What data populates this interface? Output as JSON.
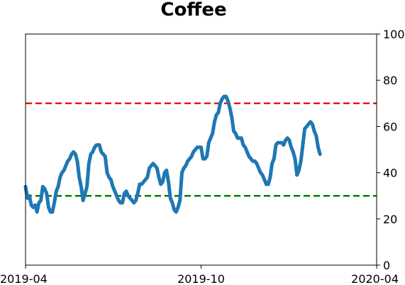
{
  "chart_data": {
    "type": "line",
    "title": "Coffee",
    "xlabel": "",
    "ylabel": "",
    "x_range": [
      "2019-04-01",
      "2020-04-01"
    ],
    "y_range": [
      0,
      100
    ],
    "y_axis_side": "right",
    "grid": false,
    "x_ticks": [
      {
        "date": "2019-04-01",
        "label": "2019-04"
      },
      {
        "date": "2019-10-01",
        "label": "2019-10"
      },
      {
        "date": "2020-04-01",
        "label": "2020-04"
      }
    ],
    "y_ticks": [
      0,
      20,
      40,
      60,
      80,
      100
    ],
    "reference_lines": [
      {
        "y": 70,
        "color": "#e41a1c",
        "style": "dashed"
      },
      {
        "y": 30,
        "color": "#008000",
        "style": "dashed"
      }
    ],
    "series": [
      {
        "color": "#1f77b4",
        "points": [
          [
            "2019-04-01",
            34
          ],
          [
            "2019-04-03",
            29
          ],
          [
            "2019-04-05",
            30
          ],
          [
            "2019-04-07",
            26
          ],
          [
            "2019-04-09",
            25
          ],
          [
            "2019-04-11",
            26
          ],
          [
            "2019-04-13",
            23
          ],
          [
            "2019-04-15",
            27
          ],
          [
            "2019-04-17",
            28
          ],
          [
            "2019-04-19",
            34
          ],
          [
            "2019-04-21",
            33
          ],
          [
            "2019-04-23",
            31
          ],
          [
            "2019-04-25",
            25
          ],
          [
            "2019-04-27",
            23
          ],
          [
            "2019-04-29",
            23
          ],
          [
            "2019-05-01",
            27
          ],
          [
            "2019-05-03",
            32
          ],
          [
            "2019-05-05",
            34
          ],
          [
            "2019-05-07",
            38
          ],
          [
            "2019-05-09",
            40
          ],
          [
            "2019-05-11",
            41
          ],
          [
            "2019-05-13",
            43
          ],
          [
            "2019-05-15",
            45
          ],
          [
            "2019-05-17",
            46
          ],
          [
            "2019-05-19",
            48
          ],
          [
            "2019-05-21",
            49
          ],
          [
            "2019-05-23",
            48
          ],
          [
            "2019-05-25",
            45
          ],
          [
            "2019-05-27",
            38
          ],
          [
            "2019-05-29",
            34
          ],
          [
            "2019-05-31",
            28
          ],
          [
            "2019-06-02",
            31
          ],
          [
            "2019-06-04",
            34
          ],
          [
            "2019-06-06",
            44
          ],
          [
            "2019-06-08",
            48
          ],
          [
            "2019-06-10",
            49
          ],
          [
            "2019-06-12",
            51
          ],
          [
            "2019-06-14",
            52
          ],
          [
            "2019-06-17",
            52
          ],
          [
            "2019-06-19",
            49
          ],
          [
            "2019-06-21",
            48
          ],
          [
            "2019-06-23",
            47
          ],
          [
            "2019-06-25",
            40
          ],
          [
            "2019-06-27",
            38
          ],
          [
            "2019-06-29",
            37
          ],
          [
            "2019-07-01",
            34
          ],
          [
            "2019-07-03",
            32
          ],
          [
            "2019-07-05",
            30
          ],
          [
            "2019-07-07",
            28
          ],
          [
            "2019-07-09",
            27
          ],
          [
            "2019-07-11",
            27
          ],
          [
            "2019-07-13",
            31
          ],
          [
            "2019-07-15",
            32
          ],
          [
            "2019-07-17",
            30
          ],
          [
            "2019-07-19",
            29
          ],
          [
            "2019-07-21",
            28
          ],
          [
            "2019-07-23",
            27
          ],
          [
            "2019-07-25",
            28
          ],
          [
            "2019-07-27",
            31
          ],
          [
            "2019-07-29",
            35
          ],
          [
            "2019-07-31",
            35
          ],
          [
            "2019-08-02",
            36
          ],
          [
            "2019-08-04",
            37
          ],
          [
            "2019-08-06",
            38
          ],
          [
            "2019-08-08",
            42
          ],
          [
            "2019-08-10",
            43
          ],
          [
            "2019-08-12",
            44
          ],
          [
            "2019-08-14",
            43
          ],
          [
            "2019-08-16",
            42
          ],
          [
            "2019-08-18",
            38
          ],
          [
            "2019-08-20",
            35
          ],
          [
            "2019-08-22",
            36
          ],
          [
            "2019-08-24",
            40
          ],
          [
            "2019-08-26",
            41
          ],
          [
            "2019-08-28",
            36
          ],
          [
            "2019-08-30",
            29
          ],
          [
            "2019-09-01",
            27
          ],
          [
            "2019-09-03",
            24
          ],
          [
            "2019-09-05",
            23
          ],
          [
            "2019-09-07",
            25
          ],
          [
            "2019-09-09",
            28
          ],
          [
            "2019-09-11",
            40
          ],
          [
            "2019-09-13",
            42
          ],
          [
            "2019-09-15",
            43
          ],
          [
            "2019-09-17",
            45
          ],
          [
            "2019-09-19",
            46
          ],
          [
            "2019-09-21",
            47
          ],
          [
            "2019-09-23",
            49
          ],
          [
            "2019-09-25",
            50
          ],
          [
            "2019-09-27",
            51
          ],
          [
            "2019-09-29",
            51
          ],
          [
            "2019-10-01",
            51
          ],
          [
            "2019-10-03",
            46
          ],
          [
            "2019-10-05",
            46
          ],
          [
            "2019-10-07",
            47
          ],
          [
            "2019-10-09",
            53
          ],
          [
            "2019-10-11",
            55
          ],
          [
            "2019-10-13",
            57
          ],
          [
            "2019-10-15",
            62
          ],
          [
            "2019-10-17",
            65
          ],
          [
            "2019-10-19",
            66
          ],
          [
            "2019-10-21",
            70
          ],
          [
            "2019-10-23",
            72
          ],
          [
            "2019-10-25",
            73
          ],
          [
            "2019-10-27",
            73
          ],
          [
            "2019-10-29",
            71
          ],
          [
            "2019-10-31",
            68
          ],
          [
            "2019-11-02",
            64
          ],
          [
            "2019-11-04",
            58
          ],
          [
            "2019-11-06",
            57
          ],
          [
            "2019-11-08",
            55
          ],
          [
            "2019-11-10",
            55
          ],
          [
            "2019-11-12",
            55
          ],
          [
            "2019-11-14",
            52
          ],
          [
            "2019-11-16",
            51
          ],
          [
            "2019-11-18",
            49
          ],
          [
            "2019-11-20",
            47
          ],
          [
            "2019-11-22",
            46
          ],
          [
            "2019-11-24",
            45
          ],
          [
            "2019-11-26",
            45
          ],
          [
            "2019-11-28",
            44
          ],
          [
            "2019-11-30",
            42
          ],
          [
            "2019-12-02",
            40
          ],
          [
            "2019-12-04",
            39
          ],
          [
            "2019-12-06",
            37
          ],
          [
            "2019-12-08",
            35
          ],
          [
            "2019-12-10",
            35
          ],
          [
            "2019-12-12",
            38
          ],
          [
            "2019-12-14",
            44
          ],
          [
            "2019-12-16",
            46
          ],
          [
            "2019-12-18",
            52
          ],
          [
            "2019-12-20",
            53
          ],
          [
            "2019-12-22",
            53
          ],
          [
            "2019-12-24",
            53
          ],
          [
            "2019-12-26",
            52
          ],
          [
            "2019-12-28",
            54
          ],
          [
            "2019-12-30",
            55
          ],
          [
            "2020-01-01",
            54
          ],
          [
            "2020-01-03",
            51
          ],
          [
            "2020-01-05",
            49
          ],
          [
            "2020-01-07",
            46
          ],
          [
            "2020-01-09",
            39
          ],
          [
            "2020-01-11",
            41
          ],
          [
            "2020-01-13",
            45
          ],
          [
            "2020-01-15",
            52
          ],
          [
            "2020-01-17",
            59
          ],
          [
            "2020-01-19",
            60
          ],
          [
            "2020-01-21",
            61
          ],
          [
            "2020-01-23",
            62
          ],
          [
            "2020-01-25",
            61
          ],
          [
            "2020-01-27",
            58
          ],
          [
            "2020-01-29",
            56
          ],
          [
            "2020-01-31",
            51
          ],
          [
            "2020-02-02",
            48
          ]
        ]
      }
    ]
  }
}
